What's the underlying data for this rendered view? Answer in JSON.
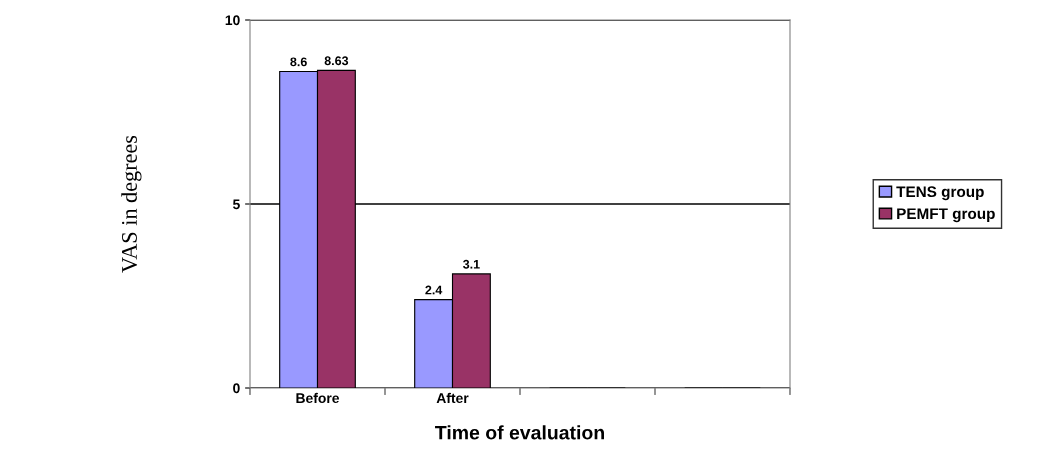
{
  "chart_data": {
    "type": "bar",
    "xlabel": "Time of evaluation",
    "ylabel": "VAS in degrees",
    "categories": [
      "Before",
      "After",
      null,
      null
    ],
    "series": [
      {
        "name": "TENS group",
        "color": "#9999ff",
        "values": [
          8.6,
          2.4,
          null,
          null
        ]
      },
      {
        "name": "PEMFT group",
        "color": "#993366",
        "values": [
          8.63,
          3.1,
          null,
          null
        ]
      }
    ],
    "ylim": [
      0,
      10
    ],
    "yticks": [
      0,
      5,
      10
    ],
    "grid": "y",
    "legend": "right",
    "data_labels": true
  }
}
